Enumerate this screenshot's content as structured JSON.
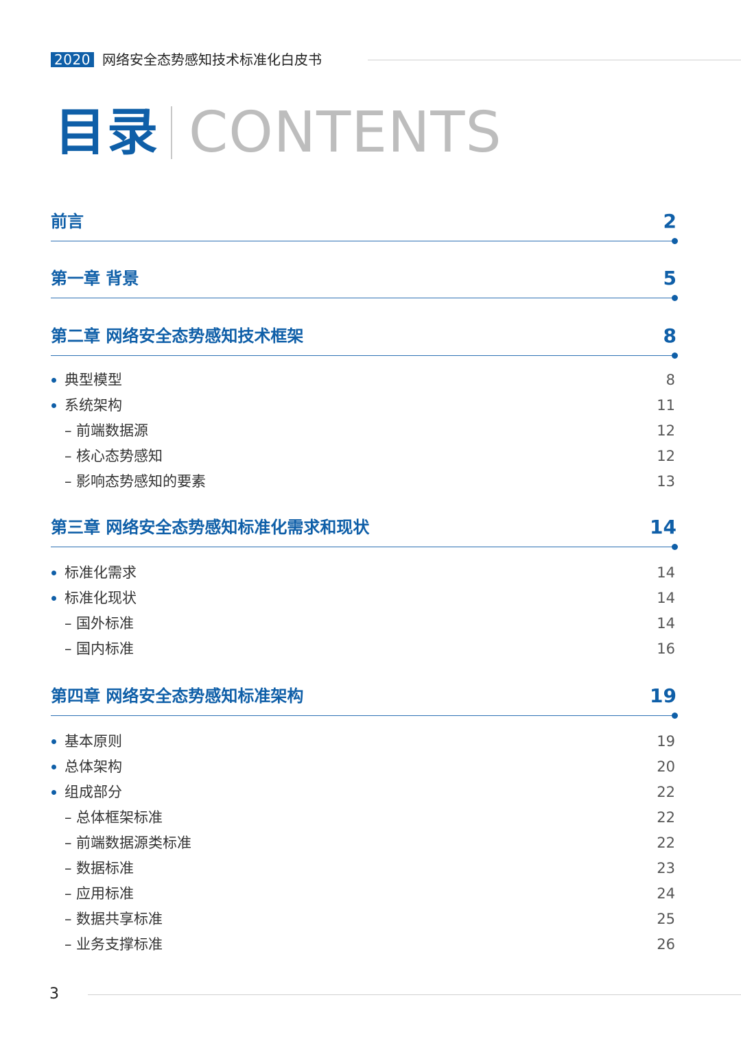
{
  "header": {
    "year": "2020",
    "doc_title": "网络安全态势感知技术标准化白皮书"
  },
  "toc_title": {
    "zh": "目录",
    "en": "CONTENTS"
  },
  "entries": [
    {
      "level": "chapter",
      "label": "前言",
      "page": "2"
    },
    {
      "level": "chapter",
      "label": "第一章 背景",
      "page": "5"
    },
    {
      "level": "chapter",
      "label": "第二章 网络安全态势感知技术框架",
      "page": "8"
    },
    {
      "level": "bullet",
      "label": "典型模型",
      "page": "8"
    },
    {
      "level": "bullet",
      "label": "系统架构",
      "page": "11"
    },
    {
      "level": "dash",
      "label": "前端数据源",
      "page": "12"
    },
    {
      "level": "dash",
      "label": "核心态势感知",
      "page": "12"
    },
    {
      "level": "dash",
      "label": "影响态势感知的要素",
      "page": "13"
    },
    {
      "level": "chapter",
      "label": "第三章 网络安全态势感知标准化需求和现状",
      "page": "14"
    },
    {
      "level": "bullet",
      "label": "标准化需求",
      "page": "14"
    },
    {
      "level": "bullet",
      "label": "标准化现状",
      "page": "14"
    },
    {
      "level": "dash",
      "label": "国外标准",
      "page": "14"
    },
    {
      "level": "dash",
      "label": "国内标准",
      "page": "16"
    },
    {
      "level": "chapter",
      "label": "第四章 网络安全态势感知标准架构",
      "page": "19"
    },
    {
      "level": "bullet",
      "label": "基本原则",
      "page": "19"
    },
    {
      "level": "bullet",
      "label": "总体架构",
      "page": "20"
    },
    {
      "level": "bullet",
      "label": "组成部分",
      "page": "22"
    },
    {
      "level": "dash",
      "label": "总体框架标准",
      "page": "22"
    },
    {
      "level": "dash",
      "label": "前端数据源类标准",
      "page": "22"
    },
    {
      "level": "dash",
      "label": "数据标准",
      "page": "23"
    },
    {
      "level": "dash",
      "label": "应用标准",
      "page": "24"
    },
    {
      "level": "dash",
      "label": "数据共享标准",
      "page": "25"
    },
    {
      "level": "dash",
      "label": "业务支撑标准",
      "page": "26"
    }
  ],
  "dash_glyph": "–",
  "footer": {
    "page_number": "3"
  },
  "colors": {
    "accent": "#0f5fa8",
    "contents_gray": "#bdbdbd"
  }
}
